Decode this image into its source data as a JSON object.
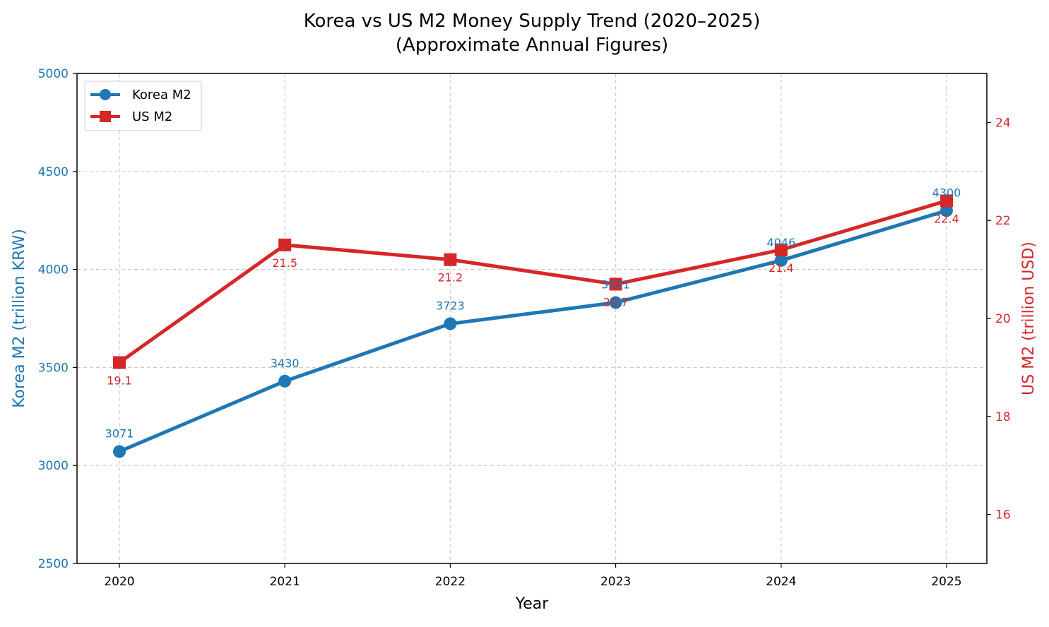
{
  "chart_data": {
    "type": "line",
    "title": "Korea vs US M2 Money Supply Trend (2020–2025)",
    "subtitle": "(Approximate Annual Figures)",
    "xlabel": "Year",
    "ylabel_left": "Korea M2 (trillion KRW)",
    "ylabel_right": "US M2 (trillion USD)",
    "x": [
      "2020",
      "2021",
      "2022",
      "2023",
      "2024",
      "2025"
    ],
    "ylim_left": [
      2500,
      5000
    ],
    "ylim_right": [
      15,
      25
    ],
    "yticks_left": [
      "2500",
      "3000",
      "3500",
      "4000",
      "4500",
      "5000"
    ],
    "yticks_right": [
      "16",
      "18",
      "20",
      "22",
      "24"
    ],
    "grid": true,
    "legend_position": "upper-left",
    "series": [
      {
        "name": "Korea M2",
        "axis": "left",
        "marker": "circle",
        "color": "#1f77b4",
        "values": [
          3071,
          3430,
          3723,
          3831,
          4046,
          4300
        ],
        "labels": [
          "3071",
          "3430",
          "3723",
          "3831",
          "4046",
          "4300"
        ]
      },
      {
        "name": "US M2",
        "axis": "right",
        "marker": "square",
        "color": "#d62728",
        "values": [
          19.1,
          21.5,
          21.2,
          20.7,
          21.4,
          22.4
        ],
        "labels": [
          "19.1",
          "21.5",
          "21.2",
          "20.7",
          "21.4",
          "22.4"
        ]
      }
    ]
  }
}
